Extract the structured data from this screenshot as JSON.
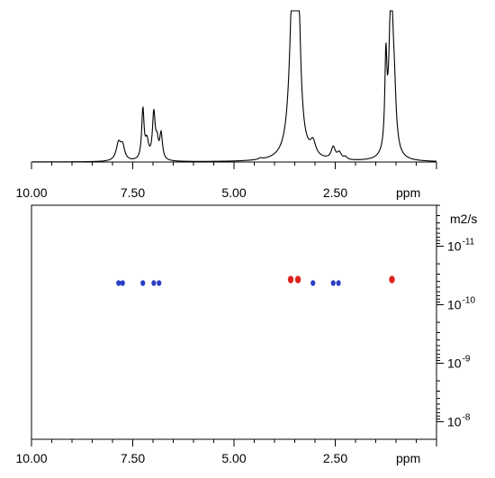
{
  "chart_data": [
    {
      "type": "line",
      "name": "1d-spectrum",
      "x_axis": {
        "label": "ppm",
        "reversed": true,
        "range": [
          10.0,
          0.0
        ],
        "ticks": [
          10.0,
          7.5,
          5.0,
          2.5
        ],
        "tick_labels": [
          "10.00",
          "7.50",
          "5.00",
          "2.50"
        ]
      },
      "y_axis": {
        "visible": false,
        "range": [
          0,
          1.0
        ]
      },
      "grid": false,
      "peaks": [
        {
          "ppm": 7.85,
          "height": 0.13,
          "width": 0.07
        },
        {
          "ppm": 7.75,
          "height": 0.1,
          "width": 0.06
        },
        {
          "ppm": 7.25,
          "height": 0.37,
          "width": 0.035
        },
        {
          "ppm": 7.15,
          "height": 0.13,
          "width": 0.05
        },
        {
          "ppm": 6.98,
          "height": 0.34,
          "width": 0.04
        },
        {
          "ppm": 6.9,
          "height": 0.12,
          "width": 0.04
        },
        {
          "ppm": 6.8,
          "height": 0.19,
          "width": 0.04
        },
        {
          "ppm": 4.35,
          "height": 0.01,
          "width": 0.05
        },
        {
          "ppm": 3.55,
          "height": 1.2,
          "width": 0.09
        },
        {
          "ppm": 3.42,
          "height": 1.1,
          "width": 0.07
        },
        {
          "ppm": 3.05,
          "height": 0.1,
          "width": 0.08
        },
        {
          "ppm": 2.55,
          "height": 0.09,
          "width": 0.06
        },
        {
          "ppm": 2.4,
          "height": 0.05,
          "width": 0.06
        },
        {
          "ppm": 2.25,
          "height": 0.02,
          "width": 0.05
        },
        {
          "ppm": 1.25,
          "height": 0.65,
          "width": 0.03
        },
        {
          "ppm": 1.12,
          "height": 1.25,
          "width": 0.06
        },
        {
          "ppm": 1.04,
          "height": 0.3,
          "width": 0.05
        }
      ]
    },
    {
      "type": "scatter",
      "name": "dosy-2d",
      "x_axis": {
        "label": "ppm",
        "reversed": true,
        "range": [
          10.0,
          0.0
        ],
        "ticks": [
          10.0,
          7.5,
          5.0,
          2.5
        ],
        "tick_labels": [
          "10.00",
          "7.50",
          "5.00",
          "2.50"
        ]
      },
      "y_axis": {
        "label": "m2/s",
        "scale": "log",
        "range": [
          -11.7,
          -7.7
        ],
        "ticks": [
          -11,
          -10,
          -9,
          -8
        ],
        "tick_labels": [
          {
            "base": "10",
            "exp": "-11"
          },
          {
            "base": "10",
            "exp": "-10"
          },
          {
            "base": "10",
            "exp": "-9"
          },
          {
            "base": "10",
            "exp": "-8"
          }
        ]
      },
      "grid": false,
      "series": [
        {
          "color": "#2b3fc4",
          "points": [
            {
              "ppm": 7.85,
              "log_d": -10.37
            },
            {
              "ppm": 7.75,
              "log_d": -10.37
            },
            {
              "ppm": 7.25,
              "log_d": -10.37
            },
            {
              "ppm": 6.98,
              "log_d": -10.37
            },
            {
              "ppm": 6.85,
              "log_d": -10.37
            },
            {
              "ppm": 3.05,
              "log_d": -10.37
            },
            {
              "ppm": 2.55,
              "log_d": -10.37
            },
            {
              "ppm": 2.42,
              "log_d": -10.37
            }
          ]
        },
        {
          "color": "#e0201b",
          "points": [
            {
              "ppm": 3.6,
              "log_d": -10.43
            },
            {
              "ppm": 3.42,
              "log_d": -10.43
            },
            {
              "ppm": 1.1,
              "log_d": -10.43
            }
          ]
        }
      ]
    }
  ]
}
